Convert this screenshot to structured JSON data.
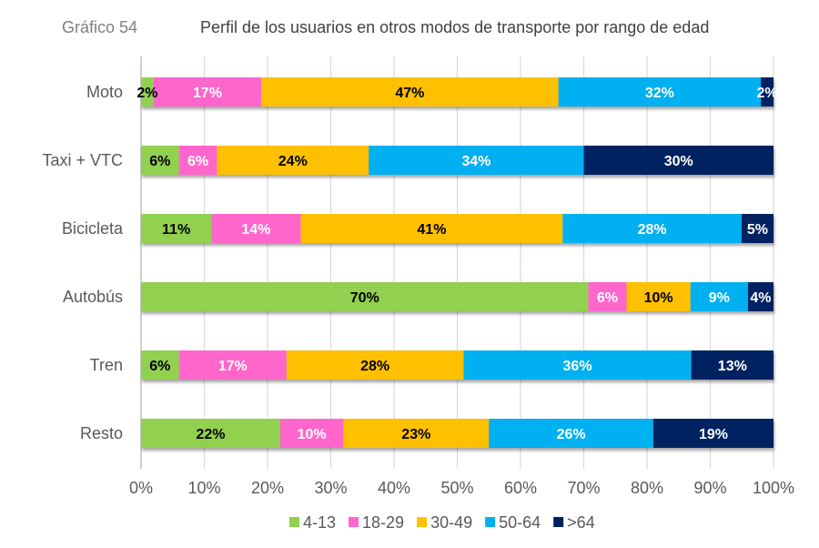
{
  "chart_data": {
    "type": "bar",
    "orientation": "horizontal",
    "stacked": "percent",
    "figure_number": "Gráfico 54",
    "title": "Perfil de los usuarios en otros modos de transporte por rango de edad",
    "categories": [
      "Moto",
      "Taxi + VTC",
      "Bicicleta",
      "Autobús",
      "Tren",
      "Resto"
    ],
    "series": [
      {
        "name": "4-13",
        "color": "#92d050",
        "label_color": "#000000",
        "values": [
          2,
          6,
          11,
          70,
          6,
          22
        ]
      },
      {
        "name": "18-29",
        "color": "#ff66cc",
        "label_color": "#ffffff",
        "values": [
          17,
          6,
          14,
          6,
          17,
          10
        ]
      },
      {
        "name": "30-49",
        "color": "#ffc000",
        "label_color": "#000000",
        "values": [
          47,
          24,
          41,
          10,
          28,
          23
        ]
      },
      {
        "name": "50-64",
        "color": "#00b0f0",
        "label_color": "#ffffff",
        "values": [
          32,
          34,
          28,
          9,
          36,
          26
        ]
      },
      {
        "name": ">64",
        "color": "#002060",
        "label_color": "#ffffff",
        "values": [
          2,
          30,
          5,
          4,
          13,
          19
        ]
      }
    ],
    "xlim": [
      0,
      100
    ],
    "xticks": [
      "0%",
      "10%",
      "20%",
      "30%",
      "40%",
      "50%",
      "60%",
      "70%",
      "80%",
      "90%",
      "100%"
    ],
    "grid": true,
    "legend": "bottom",
    "value_suffix": "%"
  }
}
